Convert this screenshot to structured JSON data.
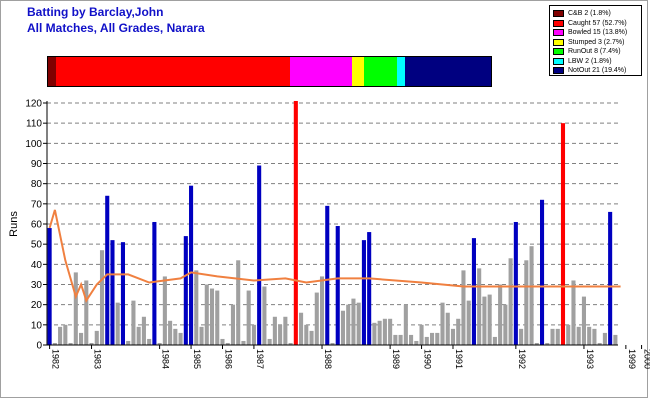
{
  "title_line1": "Batting by Barclay,John",
  "title_line2": "All Matches, All Grades, Narara",
  "chart_data": {
    "type": "bar",
    "title": "Batting by Barclay,John",
    "subtitle": "All Matches, All Grades, Narara",
    "ylabel": "Runs",
    "xlabel": "",
    "ylim": [
      0,
      120
    ],
    "yticks": [
      0,
      10,
      20,
      30,
      40,
      50,
      60,
      70,
      80,
      90,
      100,
      110,
      120
    ],
    "grid": true,
    "legend_position": "top-right",
    "dismissal_colors": {
      "CB": "#800000",
      "C": "#ff0000",
      "B": "#ff00ff",
      "S": "#ffff00",
      "R": "#00ff00",
      "L": "#00ffff",
      "N": "#0000c0",
      "other": "#a0a0a0"
    },
    "dismissals": [
      {
        "name": "C&B",
        "count": 2,
        "label": "C&B 2 (1.8%)",
        "color": "#800000"
      },
      {
        "name": "Caught",
        "count": 57,
        "label": "Caught 57 (52.7%)",
        "color": "#ff0000"
      },
      {
        "name": "Bowled",
        "count": 15,
        "label": "Bowled 15 (13.8%)",
        "color": "#ff00ff"
      },
      {
        "name": "Stumped",
        "count": 3,
        "label": "Stumped 3 (2.7%)",
        "color": "#ffff00"
      },
      {
        "name": "RunOut",
        "count": 8,
        "label": "RunOut 8 (7.4%)",
        "color": "#00ff00"
      },
      {
        "name": "LBW",
        "count": 2,
        "label": "LBW 2 (1.8%)",
        "color": "#00ffff"
      },
      {
        "name": "NotOut",
        "count": 21,
        "label": "NotOut 21 (19.4%)",
        "color": "#000080"
      }
    ],
    "innings": [
      {
        "runs": 58,
        "type": "N"
      },
      {
        "runs": 1,
        "type": "O"
      },
      {
        "runs": 9,
        "type": "O"
      },
      {
        "runs": 10,
        "type": "O"
      },
      {
        "runs": 1,
        "type": "O"
      },
      {
        "runs": 36,
        "type": "O"
      },
      {
        "runs": 6,
        "type": "O"
      },
      {
        "runs": 32,
        "type": "O"
      },
      {
        "runs": 1,
        "type": "O"
      },
      {
        "runs": 7,
        "type": "O"
      },
      {
        "runs": 47,
        "type": "O"
      },
      {
        "runs": 74,
        "type": "N"
      },
      {
        "runs": 52,
        "type": "N"
      },
      {
        "runs": 21,
        "type": "O"
      },
      {
        "runs": 51,
        "type": "N"
      },
      {
        "runs": 2,
        "type": "O"
      },
      {
        "runs": 22,
        "type": "O"
      },
      {
        "runs": 9,
        "type": "O"
      },
      {
        "runs": 14,
        "type": "O"
      },
      {
        "runs": 3,
        "type": "O"
      },
      {
        "runs": 61,
        "type": "N"
      },
      {
        "runs": 1,
        "type": "O"
      },
      {
        "runs": 34,
        "type": "O"
      },
      {
        "runs": 12,
        "type": "O"
      },
      {
        "runs": 8,
        "type": "O"
      },
      {
        "runs": 6,
        "type": "O"
      },
      {
        "runs": 54,
        "type": "N"
      },
      {
        "runs": 79,
        "type": "N"
      },
      {
        "runs": 37,
        "type": "O"
      },
      {
        "runs": 9,
        "type": "O"
      },
      {
        "runs": 30,
        "type": "O"
      },
      {
        "runs": 28,
        "type": "O"
      },
      {
        "runs": 27,
        "type": "O"
      },
      {
        "runs": 3,
        "type": "O"
      },
      {
        "runs": 1,
        "type": "O"
      },
      {
        "runs": 20,
        "type": "O"
      },
      {
        "runs": 42,
        "type": "O"
      },
      {
        "runs": 2,
        "type": "O"
      },
      {
        "runs": 27,
        "type": "O"
      },
      {
        "runs": 10,
        "type": "O"
      },
      {
        "runs": 89,
        "type": "N"
      },
      {
        "runs": 29,
        "type": "O"
      },
      {
        "runs": 3,
        "type": "O"
      },
      {
        "runs": 14,
        "type": "O"
      },
      {
        "runs": 10,
        "type": "O"
      },
      {
        "runs": 14,
        "type": "O"
      },
      {
        "runs": 1,
        "type": "O"
      },
      {
        "runs": 121,
        "type": "C"
      },
      {
        "runs": 16,
        "type": "O"
      },
      {
        "runs": 10,
        "type": "O"
      },
      {
        "runs": 7,
        "type": "O"
      },
      {
        "runs": 26,
        "type": "O"
      },
      {
        "runs": 34,
        "type": "O"
      },
      {
        "runs": 69,
        "type": "N"
      },
      {
        "runs": 1,
        "type": "O"
      },
      {
        "runs": 59,
        "type": "N"
      },
      {
        "runs": 17,
        "type": "O"
      },
      {
        "runs": 20,
        "type": "O"
      },
      {
        "runs": 23,
        "type": "O"
      },
      {
        "runs": 21,
        "type": "O"
      },
      {
        "runs": 52,
        "type": "N"
      },
      {
        "runs": 56,
        "type": "N"
      },
      {
        "runs": 11,
        "type": "O"
      },
      {
        "runs": 12,
        "type": "O"
      },
      {
        "runs": 13,
        "type": "O"
      },
      {
        "runs": 13,
        "type": "O"
      },
      {
        "runs": 5,
        "type": "O"
      },
      {
        "runs": 5,
        "type": "O"
      },
      {
        "runs": 20,
        "type": "O"
      },
      {
        "runs": 5,
        "type": "O"
      },
      {
        "runs": 2,
        "type": "O"
      },
      {
        "runs": 10,
        "type": "O"
      },
      {
        "runs": 4,
        "type": "O"
      },
      {
        "runs": 6,
        "type": "O"
      },
      {
        "runs": 6,
        "type": "O"
      },
      {
        "runs": 21,
        "type": "O"
      },
      {
        "runs": 16,
        "type": "O"
      },
      {
        "runs": 8,
        "type": "O"
      },
      {
        "runs": 13,
        "type": "O"
      },
      {
        "runs": 37,
        "type": "O"
      },
      {
        "runs": 22,
        "type": "O"
      },
      {
        "runs": 53,
        "type": "N"
      },
      {
        "runs": 38,
        "type": "O"
      },
      {
        "runs": 24,
        "type": "O"
      },
      {
        "runs": 25,
        "type": "O"
      },
      {
        "runs": 4,
        "type": "O"
      },
      {
        "runs": 30,
        "type": "O"
      },
      {
        "runs": 20,
        "type": "O"
      },
      {
        "runs": 43,
        "type": "O"
      },
      {
        "runs": 61,
        "type": "N"
      },
      {
        "runs": 8,
        "type": "O"
      },
      {
        "runs": 42,
        "type": "O"
      },
      {
        "runs": 49,
        "type": "O"
      },
      {
        "runs": 1,
        "type": "O"
      },
      {
        "runs": 72,
        "type": "N"
      },
      {
        "runs": 1,
        "type": "O"
      },
      {
        "runs": 8,
        "type": "O"
      },
      {
        "runs": 8,
        "type": "O"
      },
      {
        "runs": 110,
        "type": "C"
      },
      {
        "runs": 10,
        "type": "O"
      },
      {
        "runs": 32,
        "type": "O"
      },
      {
        "runs": 9,
        "type": "O"
      },
      {
        "runs": 24,
        "type": "O"
      },
      {
        "runs": 9,
        "type": "O"
      },
      {
        "runs": 8,
        "type": "O"
      },
      {
        "runs": 1,
        "type": "O"
      },
      {
        "runs": 6,
        "type": "O"
      },
      {
        "runs": 66,
        "type": "N"
      },
      {
        "runs": 5,
        "type": "O"
      }
    ],
    "average_series": [
      {
        "innings": 1,
        "avg": 58
      },
      {
        "innings": 2,
        "avg": 67
      },
      {
        "innings": 4,
        "avg": 42
      },
      {
        "innings": 6,
        "avg": 24
      },
      {
        "innings": 7,
        "avg": 30
      },
      {
        "innings": 8,
        "avg": 22
      },
      {
        "innings": 10,
        "avg": 30
      },
      {
        "innings": 12,
        "avg": 35
      },
      {
        "innings": 16,
        "avg": 35
      },
      {
        "innings": 20,
        "avg": 31
      },
      {
        "innings": 26,
        "avg": 33
      },
      {
        "innings": 28,
        "avg": 36
      },
      {
        "innings": 33,
        "avg": 34
      },
      {
        "innings": 40,
        "avg": 32
      },
      {
        "innings": 46,
        "avg": 33
      },
      {
        "innings": 50,
        "avg": 31
      },
      {
        "innings": 56,
        "avg": 33
      },
      {
        "innings": 62,
        "avg": 33
      },
      {
        "innings": 72,
        "avg": 31
      },
      {
        "innings": 80,
        "avg": 29
      },
      {
        "innings": 88,
        "avg": 29
      },
      {
        "innings": 97,
        "avg": 29
      },
      {
        "innings": 110,
        "avg": 29
      }
    ],
    "average_color": "#f08040",
    "year_labels": [
      {
        "label": "1982",
        "innings": 1
      },
      {
        "label": "1983",
        "innings": 9
      },
      {
        "label": "1984",
        "innings": 22
      },
      {
        "label": "1985",
        "innings": 28
      },
      {
        "label": "1986",
        "innings": 34
      },
      {
        "label": "1987",
        "innings": 40
      },
      {
        "label": "1988",
        "innings": 53
      },
      {
        "label": "1989",
        "innings": 66
      },
      {
        "label": "1990",
        "innings": 72
      },
      {
        "label": "1991",
        "innings": 78
      },
      {
        "label": "1992",
        "innings": 90
      },
      {
        "label": "1993",
        "innings": 103
      },
      {
        "label": "1999",
        "innings": 111
      },
      {
        "label": "2000",
        "innings": 114
      }
    ]
  }
}
